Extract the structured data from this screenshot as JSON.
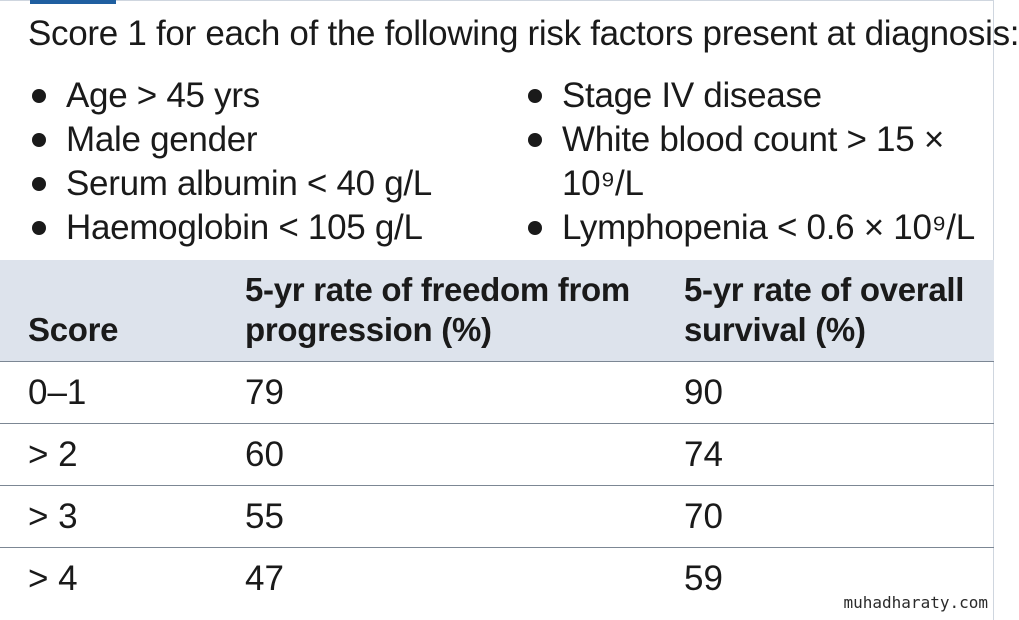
{
  "intro": "Score 1 for each of the following risk factors present at diagnosis:",
  "risk_factors_left": [
    "Age > 45 yrs",
    "Male gender",
    "Serum albumin < 40 g/L",
    "Haemoglobin < 105 g/L"
  ],
  "risk_factors_right": [
    {
      "line1": "Stage IV disease",
      "line2": ""
    },
    {
      "line1": "White blood count > 15 ×",
      "line2": "10⁹/L"
    },
    {
      "line1": "Lymphopenia < 0.6 × 10⁹/L",
      "line2": ""
    }
  ],
  "table": {
    "headers": [
      "Score",
      "5-yr rate of freedom from progression (%)",
      "5-yr rate of overall survival (%)"
    ],
    "rows": [
      [
        "0–1",
        "79",
        "90"
      ],
      [
        "> 2",
        "60",
        "74"
      ],
      [
        "> 3",
        "55",
        "70"
      ],
      [
        "> 4",
        "47",
        "59"
      ]
    ]
  },
  "watermark": "muhadharaty.com"
}
